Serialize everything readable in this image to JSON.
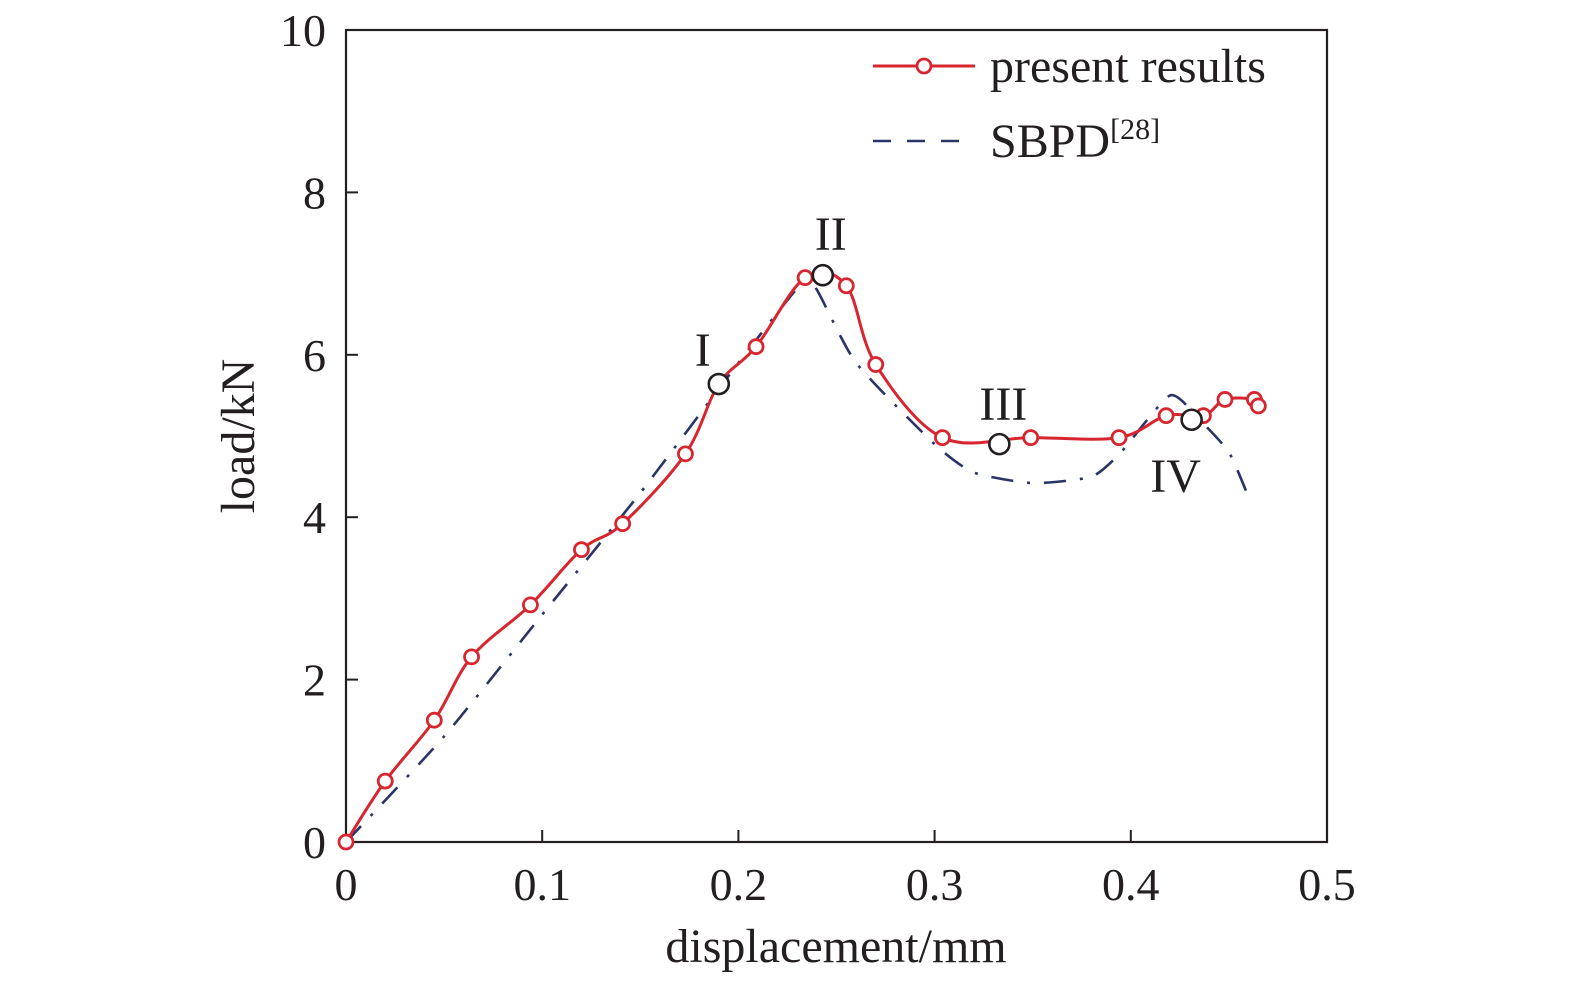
{
  "chart_data": {
    "type": "line",
    "title": "",
    "xlabel": "displacement/mm",
    "ylabel": "load/kN",
    "xlim": [
      0,
      0.5
    ],
    "ylim": [
      0,
      10
    ],
    "xticks": [
      "0",
      "0.1",
      "0.2",
      "0.3",
      "0.4",
      "0.5"
    ],
    "yticks": [
      "0",
      "2",
      "4",
      "6",
      "8",
      "10"
    ],
    "grid": false,
    "legend_position": "top-right",
    "legend": [
      {
        "label": "present results",
        "sup": ""
      },
      {
        "label": "SBPD",
        "sup": "[28]"
      }
    ],
    "series": [
      {
        "name": "present results",
        "color": "#d7262f",
        "marker": "open-circle",
        "x": [
          0,
          0.02,
          0.045,
          0.064,
          0.094,
          0.12,
          0.141,
          0.173,
          0.19,
          0.209,
          0.234,
          0.255,
          0.27,
          0.304,
          0.349,
          0.394,
          0.418,
          0.437,
          0.448,
          0.463,
          0.465
        ],
        "y": [
          0,
          0.75,
          1.5,
          2.28,
          2.92,
          3.6,
          3.92,
          4.78,
          5.64,
          6.1,
          6.95,
          6.85,
          5.88,
          4.98,
          4.98,
          4.98,
          5.25,
          5.25,
          5.45,
          5.45,
          5.37
        ]
      },
      {
        "name": "SBPD",
        "color": "#2b3467",
        "marker": "none",
        "x": [
          0,
          0.05,
          0.1,
          0.15,
          0.2,
          0.233,
          0.24,
          0.26,
          0.3,
          0.32,
          0.35,
          0.38,
          0.395,
          0.42,
          0.435,
          0.45,
          0.46
        ],
        "y": [
          0,
          1.3,
          2.8,
          4.3,
          5.9,
          6.9,
          6.8,
          5.9,
          4.9,
          4.55,
          4.42,
          4.5,
          4.8,
          5.5,
          5.2,
          4.8,
          4.25
        ]
      }
    ],
    "annotations": [
      {
        "label": "I",
        "x": 0.19,
        "y": 5.64
      },
      {
        "label": "II",
        "x": 0.243,
        "y": 6.98
      },
      {
        "label": "III",
        "x": 0.333,
        "y": 4.9
      },
      {
        "label": "IV",
        "x": 0.431,
        "y": 5.2
      }
    ]
  }
}
